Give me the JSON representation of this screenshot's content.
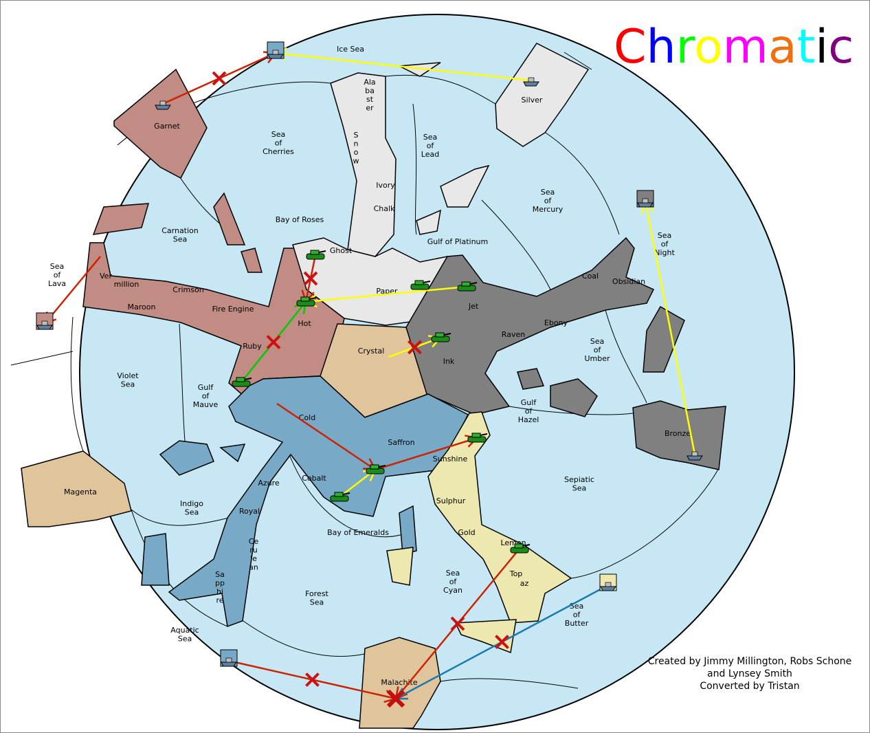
{
  "title": {
    "letters": [
      "C",
      "h",
      "r",
      "o",
      "m",
      "a",
      "t",
      "i",
      "c"
    ],
    "colors": [
      "#ff0000",
      "#0000ff",
      "#00ff00",
      "#ffff00",
      "#ff00ff",
      "#f07010",
      "#00ffff",
      "#000000",
      "#800080"
    ]
  },
  "credits": [
    "Created by Jimmy Millington, Robs Schone",
    "and Lynsey Smith",
    "Converted by Tristan"
  ],
  "colors": {
    "sea": "#c6e7f3",
    "red": "#c08c84",
    "white": "#e8e8e8",
    "tan": "#e0c49c",
    "gray": "#808080",
    "blue": "#78aac8",
    "yellow": "#ece8b0"
  },
  "labels": [
    [
      "Ice Sea"
    ],
    [
      "Ala",
      "ba",
      "st",
      "er"
    ],
    [
      "Silver"
    ],
    [
      "Garnet"
    ],
    [
      "Sea",
      "of",
      "Cherries"
    ],
    [
      "S",
      "n",
      "o",
      "w"
    ],
    [
      "Sea",
      "of",
      "Lead"
    ],
    [
      "Ivory"
    ],
    [
      "Chalk"
    ],
    [
      "Sea",
      "of",
      "Mercury"
    ],
    [
      "Carnation",
      "Sea"
    ],
    [
      "Bay of Roses"
    ],
    [
      "Ghost"
    ],
    [
      "Gulf of Platinum"
    ],
    [
      "Sea",
      "of",
      "Night"
    ],
    [
      "Sea",
      "of",
      "Lava"
    ],
    [
      "Ver"
    ],
    [
      "million"
    ],
    [
      "Crimson"
    ],
    [
      "Maroon"
    ],
    [
      "Fire Engine"
    ],
    [
      "Paper"
    ],
    [
      "Coal"
    ],
    [
      "Obsidian"
    ],
    [
      "Jet"
    ],
    [
      "Hot"
    ],
    [
      "Ebony"
    ],
    [
      "Raven"
    ],
    [
      "Sea",
      "of",
      "Umber"
    ],
    [
      "Ruby"
    ],
    [
      "Crystal"
    ],
    [
      "Ink"
    ],
    [
      "Violet",
      "Sea"
    ],
    [
      "Gulf",
      "of",
      "Mauve"
    ],
    [
      "Gulf",
      "of",
      "Hazel"
    ],
    [
      "Cold"
    ],
    [
      "Saffron"
    ],
    [
      "Bronze"
    ],
    [
      "Sunshine"
    ],
    [
      "Azure"
    ],
    [
      "Cobalt"
    ],
    [
      "Sepiatic",
      "Sea"
    ],
    [
      "Magenta"
    ],
    [
      "Indigo",
      "Sea"
    ],
    [
      "Royal"
    ],
    [
      "Sulphur"
    ],
    [
      "Bay of Emeralds"
    ],
    [
      "Gold"
    ],
    [
      "Ce",
      "ru",
      "le",
      "an"
    ],
    [
      "Lemon"
    ],
    [
      "Sa",
      "pp",
      "hi",
      "re"
    ],
    [
      "Sea",
      "of",
      "Cyan"
    ],
    [
      "Top"
    ],
    [
      "az"
    ],
    [
      "Forest",
      "Sea"
    ],
    [
      "Sea",
      "of",
      "Butter"
    ],
    [
      "Aquatic",
      "Sea"
    ],
    [
      "Malachite"
    ]
  ],
  "units": [
    {
      "type": "fleet",
      "province": "Ice Sea"
    },
    {
      "type": "fleet",
      "province": "Garnet"
    },
    {
      "type": "fleet",
      "province": "Silver"
    },
    {
      "type": "fleet",
      "province": "Sea of Night"
    },
    {
      "type": "fleet",
      "province": "Sea of Lava"
    },
    {
      "type": "fleet",
      "province": "Bronze"
    },
    {
      "type": "fleet",
      "province": "Sea of Butter"
    },
    {
      "type": "fleet",
      "province": "Aquatic Sea"
    },
    {
      "type": "army",
      "province": "Ghost"
    },
    {
      "type": "army",
      "province": "Hot"
    },
    {
      "type": "army",
      "province": "Paper"
    },
    {
      "type": "army",
      "province": "Jet"
    },
    {
      "type": "army",
      "province": "Ink"
    },
    {
      "type": "army",
      "province": "Ruby"
    },
    {
      "type": "army",
      "province": "Sunshine"
    },
    {
      "type": "army",
      "province": "Saffron"
    },
    {
      "type": "army",
      "province": "Cobalt"
    },
    {
      "type": "army",
      "province": "Lemon"
    }
  ],
  "orders": [
    {
      "color": "#cc2200",
      "from": "Garnet",
      "to": "Ice Sea",
      "failed": true
    },
    {
      "color": "#ffff00",
      "from": "Silver",
      "to": "Ice Sea",
      "failed": false
    },
    {
      "color": "#cc2200",
      "from": "Sea of Night",
      "to": "Sea of Night",
      "failed": false
    },
    {
      "color": "#cc2200",
      "from": "Vermillion",
      "to": "Sea of Lava",
      "failed": false
    },
    {
      "color": "#ffff00",
      "from": "Bronze",
      "to": "Sea of Night",
      "failed": false
    },
    {
      "color": "#cc2200",
      "from": "Ghost",
      "to": "Hot",
      "failed": true
    },
    {
      "color": "#ffff00",
      "from": "Jet",
      "to": "Hot",
      "failed": false
    },
    {
      "color": "#00cc00",
      "from": "Ruby",
      "to": "Hot",
      "failed": true
    },
    {
      "color": "#ffff00",
      "from": "Crystal",
      "to": "Ink",
      "failed": true
    },
    {
      "color": "#cc2200",
      "from": "Cold",
      "to": "Saffron",
      "failed": false
    },
    {
      "color": "#cc2200",
      "from": "Saffron",
      "to": "Sunshine",
      "failed": false
    },
    {
      "color": "#ffff00",
      "from": "Cobalt",
      "to": "Saffron",
      "failed": false
    },
    {
      "color": "#cc2200",
      "from": "Lemon",
      "to": "Malachite",
      "failed": true
    },
    {
      "color": "#cc2200",
      "from": "Aquatic Sea",
      "to": "Malachite",
      "failed": true
    },
    {
      "color": "#1a7ab0",
      "from": "Sea of Butter",
      "to": "Malachite",
      "failed": true
    }
  ]
}
